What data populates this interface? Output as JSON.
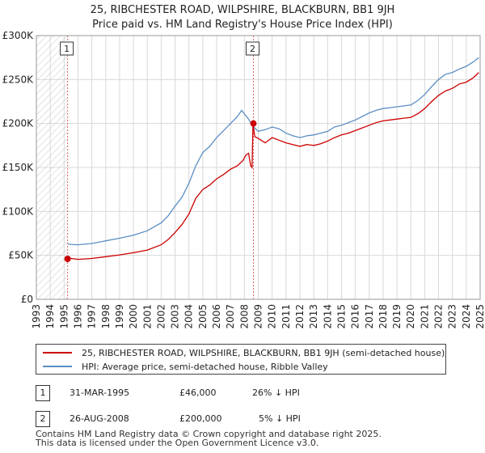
{
  "title_line1": "25, RIBCHESTER ROAD, WILPSHIRE, BLACKBURN, BB1 9JH",
  "title_line2": "Price paid vs. HM Land Registry's House Price Index (HPI)",
  "colors": {
    "red": "#cc0000",
    "blue": "#5b8ec4",
    "hatch": "#c8c8c8",
    "grid": "#d8d8d8",
    "marker_line": "#e06060"
  },
  "chart_data": {
    "type": "line",
    "title": "25, RIBCHESTER ROAD, WILPSHIRE, BLACKBURN, BB1 9JH — Price paid vs. HM Land Registry's House Price Index (HPI)",
    "xlim": [
      1993,
      2025
    ],
    "ylim": [
      0,
      300000
    ],
    "x_ticks": [
      "1993",
      "1994",
      "1995",
      "1996",
      "1997",
      "1998",
      "1999",
      "2000",
      "2001",
      "2002",
      "2003",
      "2004",
      "2005",
      "2006",
      "2007",
      "2008",
      "2009",
      "2010",
      "2011",
      "2012",
      "2013",
      "2014",
      "2015",
      "2016",
      "2017",
      "2018",
      "2019",
      "2020",
      "2021",
      "2022",
      "2023",
      "2024",
      "2025"
    ],
    "y_ticks": [
      {
        "value": 0,
        "label": "£0"
      },
      {
        "value": 50000,
        "label": "£50K"
      },
      {
        "value": 100000,
        "label": "£100K"
      },
      {
        "value": 150000,
        "label": "£150K"
      },
      {
        "value": 200000,
        "label": "£200K"
      },
      {
        "value": 250000,
        "label": "£250K"
      },
      {
        "value": 300000,
        "label": "£300K"
      }
    ],
    "hatched_region": [
      1993,
      1995.25
    ],
    "series": [
      {
        "name": "25, RIBCHESTER ROAD, WILPSHIRE, BLACKBURN, BB1 9JH (semi-detached house)",
        "color": "#cc0000",
        "points": [
          [
            1995.25,
            46000
          ],
          [
            1995.5,
            46500
          ],
          [
            1996,
            45500
          ],
          [
            1997,
            46500
          ],
          [
            1998,
            48500
          ],
          [
            1999,
            50500
          ],
          [
            2000,
            53000
          ],
          [
            2001,
            56000
          ],
          [
            2002,
            62000
          ],
          [
            2002.5,
            68000
          ],
          [
            2003,
            76000
          ],
          [
            2003.5,
            85000
          ],
          [
            2004,
            97000
          ],
          [
            2004.5,
            115000
          ],
          [
            2005,
            125000
          ],
          [
            2005.5,
            130000
          ],
          [
            2006,
            137000
          ],
          [
            2006.5,
            142000
          ],
          [
            2007,
            148000
          ],
          [
            2007.5,
            152000
          ],
          [
            2007.9,
            158000
          ],
          [
            2008.1,
            164000
          ],
          [
            2008.3,
            166000
          ],
          [
            2008.45,
            152000
          ],
          [
            2008.55,
            150000
          ],
          [
            2008.62,
            200000
          ],
          [
            2008.75,
            185000
          ],
          [
            2009,
            183000
          ],
          [
            2009.5,
            178000
          ],
          [
            2010,
            184000
          ],
          [
            2010.5,
            181000
          ],
          [
            2011,
            178000
          ],
          [
            2011.5,
            176000
          ],
          [
            2012,
            174000
          ],
          [
            2012.5,
            176000
          ],
          [
            2013,
            175000
          ],
          [
            2013.5,
            177000
          ],
          [
            2014,
            180000
          ],
          [
            2014.5,
            184000
          ],
          [
            2015,
            187000
          ],
          [
            2015.5,
            189000
          ],
          [
            2016,
            192000
          ],
          [
            2016.5,
            195000
          ],
          [
            2017,
            198000
          ],
          [
            2017.5,
            201000
          ],
          [
            2018,
            203000
          ],
          [
            2018.5,
            204000
          ],
          [
            2019,
            205000
          ],
          [
            2019.5,
            206000
          ],
          [
            2020,
            207000
          ],
          [
            2020.5,
            211000
          ],
          [
            2021,
            217000
          ],
          [
            2021.5,
            225000
          ],
          [
            2022,
            232000
          ],
          [
            2022.5,
            237000
          ],
          [
            2023,
            240000
          ],
          [
            2023.5,
            245000
          ],
          [
            2024,
            247000
          ],
          [
            2024.5,
            252000
          ],
          [
            2024.9,
            258000
          ]
        ]
      },
      {
        "name": "HPI: Average price, semi-detached house, Ribble Valley",
        "color": "#5b8ec4",
        "points": [
          [
            1995.25,
            63000
          ],
          [
            1995.5,
            62500
          ],
          [
            1996,
            62000
          ],
          [
            1997,
            63500
          ],
          [
            1998,
            66500
          ],
          [
            1999,
            69500
          ],
          [
            2000,
            73000
          ],
          [
            2001,
            78000
          ],
          [
            2002,
            87000
          ],
          [
            2002.5,
            95000
          ],
          [
            2003,
            106000
          ],
          [
            2003.5,
            116000
          ],
          [
            2004,
            132000
          ],
          [
            2004.5,
            152000
          ],
          [
            2005,
            167000
          ],
          [
            2005.5,
            174000
          ],
          [
            2006,
            184000
          ],
          [
            2006.5,
            192000
          ],
          [
            2007,
            200000
          ],
          [
            2007.5,
            208000
          ],
          [
            2007.8,
            215000
          ],
          [
            2008,
            211000
          ],
          [
            2008.3,
            205000
          ],
          [
            2008.6,
            197000
          ],
          [
            2009,
            191000
          ],
          [
            2009.5,
            193000
          ],
          [
            2010,
            196000
          ],
          [
            2010.5,
            194000
          ],
          [
            2011,
            189000
          ],
          [
            2011.5,
            186000
          ],
          [
            2012,
            184000
          ],
          [
            2012.5,
            186000
          ],
          [
            2013,
            187000
          ],
          [
            2013.5,
            189000
          ],
          [
            2014,
            191000
          ],
          [
            2014.5,
            196000
          ],
          [
            2015,
            198000
          ],
          [
            2015.5,
            201000
          ],
          [
            2016,
            204000
          ],
          [
            2016.5,
            208000
          ],
          [
            2017,
            212000
          ],
          [
            2017.5,
            215000
          ],
          [
            2018,
            217000
          ],
          [
            2018.5,
            218000
          ],
          [
            2019,
            219000
          ],
          [
            2019.5,
            220000
          ],
          [
            2020,
            221000
          ],
          [
            2020.5,
            226000
          ],
          [
            2021,
            233000
          ],
          [
            2021.5,
            242000
          ],
          [
            2022,
            250000
          ],
          [
            2022.5,
            256000
          ],
          [
            2023,
            258000
          ],
          [
            2023.5,
            262000
          ],
          [
            2024,
            265000
          ],
          [
            2024.5,
            270000
          ],
          [
            2024.9,
            275000
          ]
        ]
      }
    ],
    "sales": [
      {
        "id": "1",
        "x": 1995.25,
        "y": 46000
      },
      {
        "id": "2",
        "x": 2008.65,
        "y": 200000
      }
    ]
  },
  "legend": {
    "red_label": "25, RIBCHESTER ROAD, WILPSHIRE, BLACKBURN, BB1 9JH (semi-detached house)",
    "blue_label": "HPI: Average price, semi-detached house, Ribble Valley"
  },
  "transactions": [
    {
      "id": "1",
      "date": "31-MAR-1995",
      "price": "£46,000",
      "hpi": "26% ↓ HPI"
    },
    {
      "id": "2",
      "date": "26-AUG-2008",
      "price": "£200,000",
      "hpi": "5% ↓ HPI"
    }
  ],
  "footer": {
    "line1": "Contains HM Land Registry data © Crown copyright and database right 2025.",
    "line2": "This data is licensed under the Open Government Licence v3.0."
  }
}
